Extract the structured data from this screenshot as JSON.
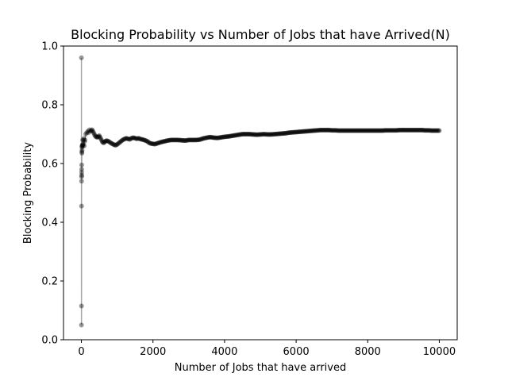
{
  "chart_data": {
    "type": "line",
    "title": "Blocking Probability vs Number of Jobs that have Arrived(N)",
    "xlabel": "Number of Jobs that have arrived",
    "ylabel": "Blocking Probability",
    "xlim": [
      -500,
      10500
    ],
    "ylim": [
      0.0,
      1.0
    ],
    "xticks": [
      0,
      2000,
      4000,
      6000,
      8000,
      10000
    ],
    "yticks": [
      0.0,
      0.2,
      0.4,
      0.6,
      0.8,
      1.0
    ],
    "grid": false,
    "legend": "none",
    "series": [
      {
        "color": "#000000",
        "marker": "circle",
        "x": [
          1,
          2,
          3,
          4,
          5,
          6,
          7,
          8,
          9,
          10,
          12,
          14,
          16,
          18,
          20,
          25,
          30,
          35,
          40,
          50,
          60,
          70,
          80,
          90,
          100,
          120,
          150,
          180,
          200,
          230,
          260,
          300,
          340,
          380,
          420,
          460,
          500,
          540,
          580,
          620,
          660,
          700,
          750,
          800,
          850,
          900,
          950,
          1000,
          1050,
          1100,
          1150,
          1200,
          1250,
          1300,
          1350,
          1400,
          1450,
          1500,
          1550,
          1600,
          1650,
          1700,
          1750,
          1800,
          1850,
          1900,
          1950,
          2000,
          2050,
          2100,
          2150,
          2200,
          2300,
          2400,
          2500,
          2600,
          2700,
          2800,
          2900,
          3000,
          3100,
          3200,
          3300,
          3400,
          3500,
          3600,
          3700,
          3800,
          3900,
          4000,
          4100,
          4200,
          4300,
          4400,
          4500,
          4600,
          4700,
          4800,
          4900,
          5000,
          5100,
          5200,
          5300,
          5400,
          5500,
          5600,
          5700,
          5800,
          5900,
          6000,
          6100,
          6200,
          6300,
          6400,
          6500,
          6600,
          6700,
          6800,
          6900,
          7000,
          7100,
          7200,
          7300,
          7400,
          7500,
          7600,
          7700,
          7800,
          7900,
          8000,
          8100,
          8200,
          8300,
          8400,
          8500,
          8600,
          8700,
          8800,
          8900,
          9000,
          9100,
          9200,
          9300,
          9400,
          9500,
          9600,
          9700,
          9800,
          9900,
          10000
        ],
        "y": [
          0.96,
          0.05,
          0.115,
          0.455,
          0.54,
          0.555,
          0.57,
          0.58,
          0.595,
          0.56,
          0.64,
          0.655,
          0.635,
          0.66,
          0.645,
          0.66,
          0.665,
          0.68,
          0.66,
          0.665,
          0.68,
          0.685,
          0.66,
          0.675,
          0.68,
          0.7,
          0.705,
          0.71,
          0.705,
          0.715,
          0.71,
          0.715,
          0.705,
          0.695,
          0.69,
          0.69,
          0.695,
          0.685,
          0.675,
          0.67,
          0.675,
          0.678,
          0.676,
          0.672,
          0.668,
          0.665,
          0.662,
          0.665,
          0.67,
          0.675,
          0.68,
          0.683,
          0.686,
          0.684,
          0.682,
          0.686,
          0.688,
          0.686,
          0.684,
          0.686,
          0.683,
          0.682,
          0.68,
          0.678,
          0.675,
          0.67,
          0.668,
          0.667,
          0.666,
          0.668,
          0.67,
          0.672,
          0.675,
          0.678,
          0.68,
          0.68,
          0.68,
          0.679,
          0.678,
          0.68,
          0.68,
          0.68,
          0.681,
          0.685,
          0.688,
          0.69,
          0.688,
          0.687,
          0.689,
          0.691,
          0.692,
          0.694,
          0.696,
          0.698,
          0.7,
          0.7,
          0.7,
          0.699,
          0.698,
          0.699,
          0.7,
          0.699,
          0.699,
          0.7,
          0.701,
          0.702,
          0.703,
          0.705,
          0.706,
          0.707,
          0.708,
          0.709,
          0.71,
          0.711,
          0.712,
          0.713,
          0.714,
          0.714,
          0.714,
          0.713,
          0.713,
          0.712,
          0.712,
          0.712,
          0.712,
          0.712,
          0.712,
          0.712,
          0.712,
          0.712,
          0.712,
          0.712,
          0.712,
          0.712,
          0.713,
          0.713,
          0.713,
          0.713,
          0.714,
          0.714,
          0.714,
          0.714,
          0.714,
          0.714,
          0.714,
          0.713,
          0.713,
          0.712,
          0.712,
          0.712
        ]
      }
    ]
  }
}
